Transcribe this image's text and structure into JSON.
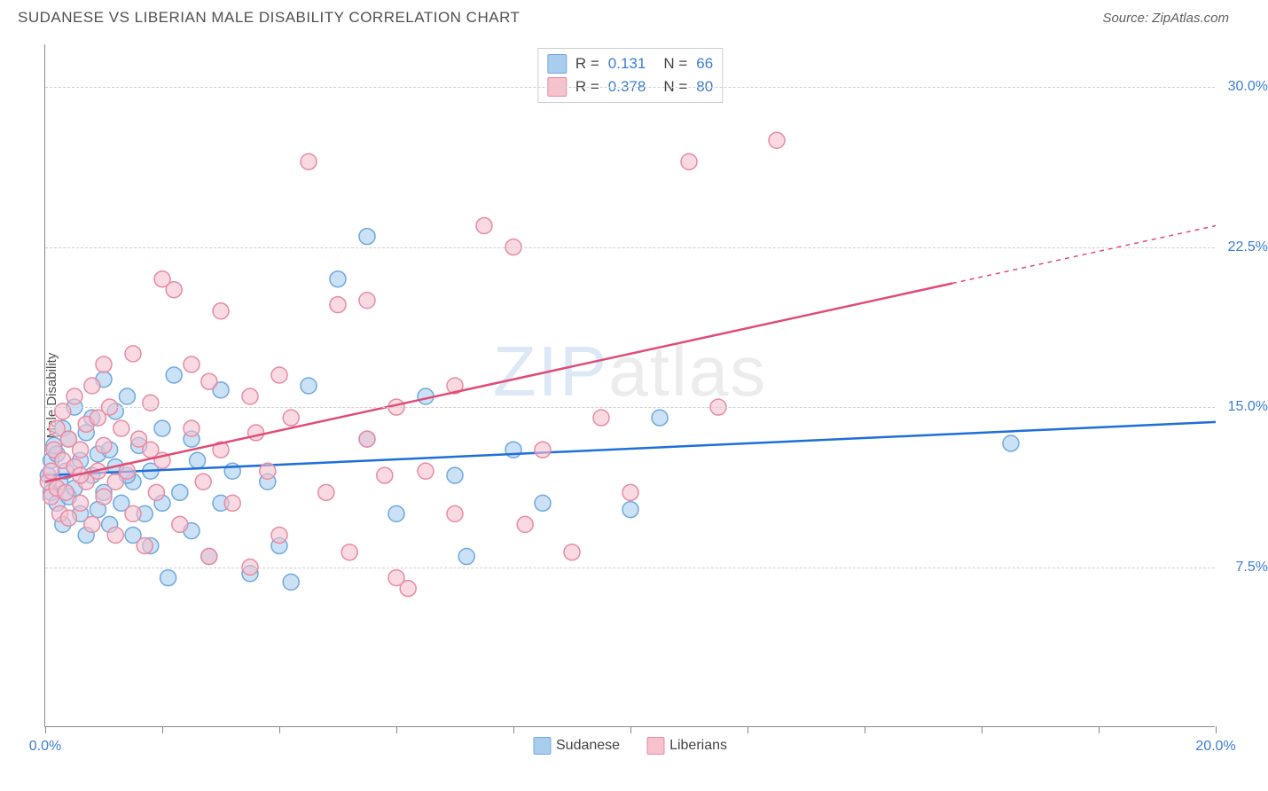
{
  "header": {
    "title": "SUDANESE VS LIBERIAN MALE DISABILITY CORRELATION CHART",
    "source": "Source: ZipAtlas.com"
  },
  "chart": {
    "type": "scatter",
    "ylabel": "Male Disability",
    "xlim": [
      0,
      20
    ],
    "ylim": [
      0,
      32
    ],
    "xtick_positions": [
      0,
      2,
      4,
      6,
      8,
      10,
      12,
      14,
      16,
      18,
      20
    ],
    "xtick_labels_shown": {
      "0": "0.0%",
      "20": "20.0%"
    },
    "ytick_positions": [
      7.5,
      15.0,
      22.5,
      30.0
    ],
    "ytick_labels": [
      "7.5%",
      "15.0%",
      "22.5%",
      "30.0%"
    ],
    "grid_color": "#d0d0d0",
    "background_color": "#ffffff",
    "axis_color": "#888888",
    "label_color": "#3b7dd8",
    "marker_radius": 9,
    "marker_stroke_width": 1.5,
    "line_width": 2.5,
    "watermark": {
      "prefix": "ZIP",
      "suffix": "atlas"
    },
    "series": [
      {
        "name": "Sudanese",
        "fill_color": "#a8cdee",
        "stroke_color": "#6fa9df",
        "line_color": "#1e6fd9",
        "R": "0.131",
        "N": "66",
        "trend": {
          "y_at_xmin": 11.8,
          "y_at_xmax": 14.3,
          "dash_from_x": null
        },
        "points": [
          [
            0.05,
            11.8
          ],
          [
            0.1,
            12.5
          ],
          [
            0.1,
            11.0
          ],
          [
            0.15,
            13.2
          ],
          [
            0.2,
            10.5
          ],
          [
            0.2,
            12.8
          ],
          [
            0.25,
            11.5
          ],
          [
            0.3,
            14.0
          ],
          [
            0.3,
            9.5
          ],
          [
            0.35,
            12.0
          ],
          [
            0.4,
            13.5
          ],
          [
            0.4,
            10.8
          ],
          [
            0.5,
            11.2
          ],
          [
            0.5,
            15.0
          ],
          [
            0.6,
            10.0
          ],
          [
            0.6,
            12.5
          ],
          [
            0.7,
            13.8
          ],
          [
            0.7,
            9.0
          ],
          [
            0.8,
            11.8
          ],
          [
            0.8,
            14.5
          ],
          [
            0.9,
            10.2
          ],
          [
            0.9,
            12.8
          ],
          [
            1.0,
            16.3
          ],
          [
            1.0,
            11.0
          ],
          [
            1.1,
            13.0
          ],
          [
            1.1,
            9.5
          ],
          [
            1.2,
            12.2
          ],
          [
            1.2,
            14.8
          ],
          [
            1.3,
            10.5
          ],
          [
            1.4,
            15.5
          ],
          [
            1.5,
            11.5
          ],
          [
            1.5,
            9.0
          ],
          [
            1.6,
            13.2
          ],
          [
            1.7,
            10.0
          ],
          [
            1.8,
            12.0
          ],
          [
            1.8,
            8.5
          ],
          [
            2.0,
            14.0
          ],
          [
            2.0,
            10.5
          ],
          [
            2.1,
            7.0
          ],
          [
            2.2,
            16.5
          ],
          [
            2.3,
            11.0
          ],
          [
            2.5,
            9.2
          ],
          [
            2.5,
            13.5
          ],
          [
            2.8,
            8.0
          ],
          [
            3.0,
            15.8
          ],
          [
            3.0,
            10.5
          ],
          [
            3.2,
            12.0
          ],
          [
            3.5,
            7.2
          ],
          [
            3.8,
            11.5
          ],
          [
            4.0,
            8.5
          ],
          [
            4.2,
            6.8
          ],
          [
            4.5,
            16.0
          ],
          [
            5.0,
            21.0
          ],
          [
            5.5,
            23.0
          ],
          [
            5.5,
            13.5
          ],
          [
            6.0,
            10.0
          ],
          [
            6.5,
            15.5
          ],
          [
            7.0,
            11.8
          ],
          [
            7.2,
            8.0
          ],
          [
            8.0,
            13.0
          ],
          [
            8.5,
            10.5
          ],
          [
            10.0,
            10.2
          ],
          [
            10.5,
            14.5
          ],
          [
            16.5,
            13.3
          ],
          [
            1.4,
            11.8
          ],
          [
            2.6,
            12.5
          ]
        ]
      },
      {
        "name": "Liberians",
        "fill_color": "#f5c2ce",
        "stroke_color": "#e88ba3",
        "line_color": "#e14b76",
        "R": "0.378",
        "N": "80",
        "trend": {
          "y_at_xmin": 11.5,
          "y_at_xmax": 23.5,
          "dash_from_x": 15.5
        },
        "points": [
          [
            0.05,
            11.5
          ],
          [
            0.1,
            12.0
          ],
          [
            0.1,
            10.8
          ],
          [
            0.15,
            13.0
          ],
          [
            0.2,
            11.2
          ],
          [
            0.2,
            14.0
          ],
          [
            0.25,
            10.0
          ],
          [
            0.3,
            12.5
          ],
          [
            0.3,
            14.8
          ],
          [
            0.35,
            11.0
          ],
          [
            0.4,
            13.5
          ],
          [
            0.4,
            9.8
          ],
          [
            0.5,
            12.2
          ],
          [
            0.5,
            15.5
          ],
          [
            0.6,
            10.5
          ],
          [
            0.6,
            13.0
          ],
          [
            0.7,
            14.2
          ],
          [
            0.7,
            11.5
          ],
          [
            0.8,
            9.5
          ],
          [
            0.8,
            16.0
          ],
          [
            0.9,
            12.0
          ],
          [
            0.9,
            14.5
          ],
          [
            1.0,
            10.8
          ],
          [
            1.0,
            13.2
          ],
          [
            1.1,
            15.0
          ],
          [
            1.2,
            11.5
          ],
          [
            1.2,
            9.0
          ],
          [
            1.3,
            14.0
          ],
          [
            1.4,
            12.0
          ],
          [
            1.5,
            17.5
          ],
          [
            1.5,
            10.0
          ],
          [
            1.6,
            13.5
          ],
          [
            1.7,
            8.5
          ],
          [
            1.8,
            15.2
          ],
          [
            1.9,
            11.0
          ],
          [
            2.0,
            21.0
          ],
          [
            2.0,
            12.5
          ],
          [
            2.2,
            20.5
          ],
          [
            2.3,
            9.5
          ],
          [
            2.5,
            14.0
          ],
          [
            2.5,
            17.0
          ],
          [
            2.7,
            11.5
          ],
          [
            2.8,
            8.0
          ],
          [
            3.0,
            13.0
          ],
          [
            3.0,
            19.5
          ],
          [
            3.2,
            10.5
          ],
          [
            3.5,
            15.5
          ],
          [
            3.5,
            7.5
          ],
          [
            3.8,
            12.0
          ],
          [
            4.0,
            9.0
          ],
          [
            4.2,
            14.5
          ],
          [
            4.5,
            26.5
          ],
          [
            4.8,
            11.0
          ],
          [
            5.0,
            19.8
          ],
          [
            5.2,
            8.2
          ],
          [
            5.5,
            20.0
          ],
          [
            5.5,
            13.5
          ],
          [
            6.0,
            7.0
          ],
          [
            6.0,
            15.0
          ],
          [
            6.2,
            6.5
          ],
          [
            6.5,
            12.0
          ],
          [
            7.0,
            16.0
          ],
          [
            7.0,
            10.0
          ],
          [
            7.5,
            23.5
          ],
          [
            8.0,
            22.5
          ],
          [
            8.2,
            9.5
          ],
          [
            8.5,
            13.0
          ],
          [
            9.0,
            8.2
          ],
          [
            9.5,
            14.5
          ],
          [
            10.0,
            11.0
          ],
          [
            11.0,
            26.5
          ],
          [
            11.5,
            15.0
          ],
          [
            12.5,
            27.5
          ],
          [
            4.0,
            16.5
          ],
          [
            1.0,
            17.0
          ],
          [
            2.8,
            16.2
          ],
          [
            3.6,
            13.8
          ],
          [
            5.8,
            11.8
          ],
          [
            0.6,
            11.8
          ],
          [
            1.8,
            13.0
          ]
        ]
      }
    ],
    "legend_bottom": [
      {
        "label": "Sudanese",
        "fill": "#a8cdee",
        "stroke": "#6fa9df"
      },
      {
        "label": "Liberians",
        "fill": "#f5c2ce",
        "stroke": "#e88ba3"
      }
    ]
  }
}
